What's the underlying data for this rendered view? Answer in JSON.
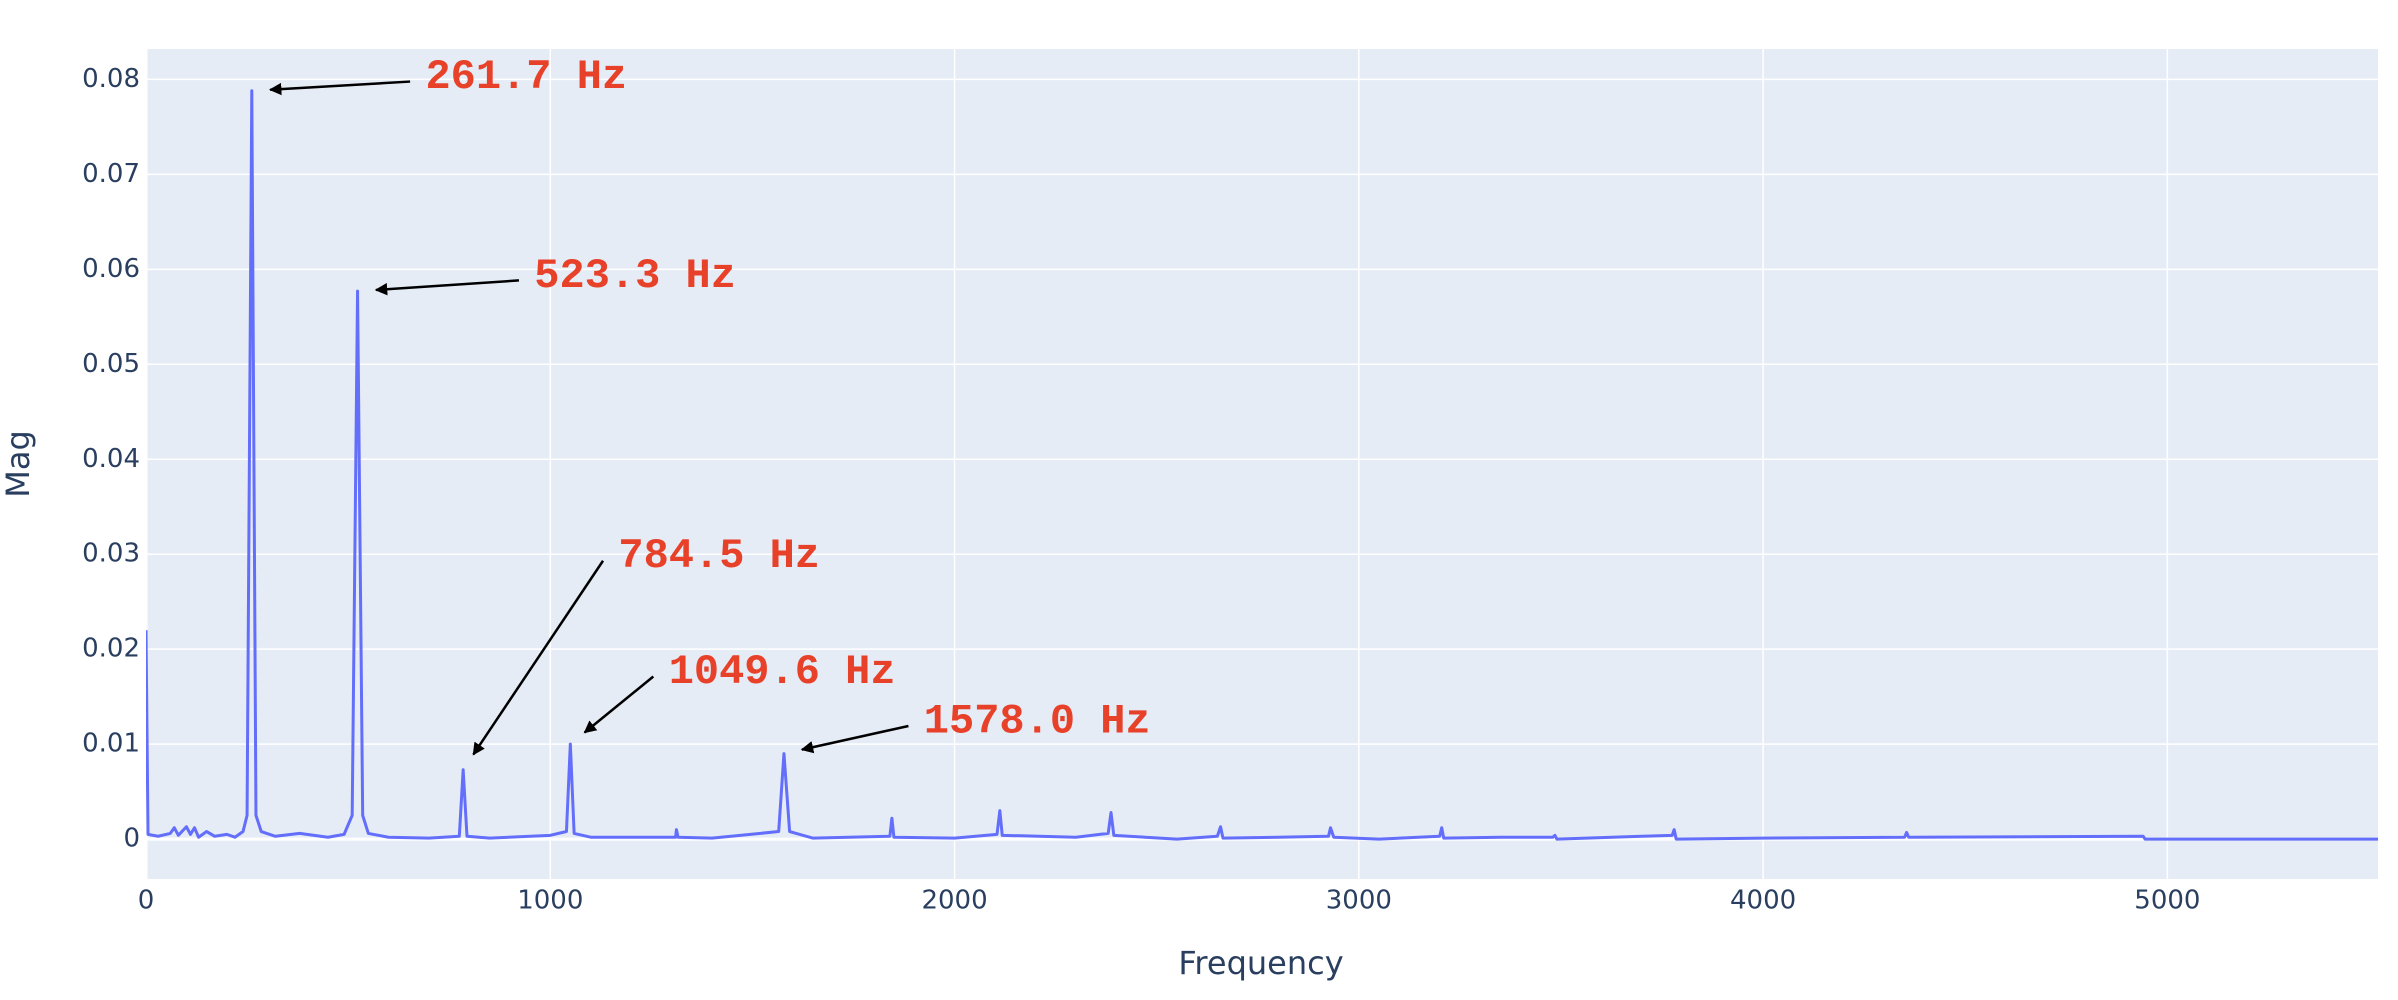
{
  "chart_data": {
    "type": "line",
    "x_label": "Frequency",
    "y_label": "Mag",
    "xlim": [
      0,
      5521
    ],
    "ylim": [
      -0.0042,
      0.0832
    ],
    "xticks": [
      0,
      1000,
      2000,
      3000,
      4000,
      5000
    ],
    "yticks": [
      0,
      0.01,
      0.02,
      0.03,
      0.04,
      0.05,
      0.06,
      0.07,
      0.08
    ],
    "grid": true,
    "series": [
      {
        "color": "#636efa",
        "x": [
          0,
          5,
          30,
          60,
          70,
          80,
          100,
          110,
          120,
          130,
          150,
          170,
          200,
          220,
          240,
          250,
          261.7,
          272,
          285,
          320,
          380,
          450,
          490,
          510,
          523.3,
          536,
          550,
          600,
          700,
          775,
          784.5,
          794,
          850,
          1000,
          1040,
          1049.6,
          1059,
          1100,
          1310,
          1312,
          1316,
          1400,
          1565,
          1578,
          1592,
          1650,
          1840,
          1845,
          1850,
          2000,
          2105,
          2112,
          2118,
          2300,
          2380,
          2387,
          2394,
          2550,
          2650,
          2658,
          2664,
          2800,
          2925,
          2930,
          2938,
          3050,
          3200,
          3205,
          3210,
          3350,
          3480,
          3485,
          3490,
          3700,
          3775,
          3780,
          3785,
          4000,
          4350,
          4355,
          4360,
          4940,
          4945,
          5521
        ],
        "values": [
          0.022,
          0.0005,
          0.0003,
          0.0006,
          0.0012,
          0.0004,
          0.0013,
          0.0005,
          0.0012,
          0.0002,
          0.0008,
          0.0003,
          0.0005,
          0.0002,
          0.0008,
          0.0025,
          0.0788,
          0.0025,
          0.0008,
          0.0003,
          0.0006,
          0.0002,
          0.0005,
          0.0025,
          0.0577,
          0.0025,
          0.0006,
          0.0002,
          0.0001,
          0.0003,
          0.0073,
          0.0003,
          0.0001,
          0.0004,
          0.0008,
          0.01,
          0.0006,
          0.0002,
          0.0002,
          0.001,
          0.0002,
          0.0001,
          0.0008,
          0.009,
          0.0008,
          0.0001,
          0.0003,
          0.0022,
          0.0002,
          0.0001,
          0.0005,
          0.003,
          0.0004,
          0.0002,
          0.0006,
          0.0028,
          0.0004,
          0,
          0.0003,
          0.0013,
          0.0001,
          0.0002,
          0.0003,
          0.0012,
          0.0002,
          0,
          0.0003,
          0.0012,
          0.0001,
          0.0002,
          0.0002,
          0.0004,
          0,
          0.0003,
          0.0004,
          0.001,
          0,
          0.0001,
          0.0002,
          0.0007,
          0.0002,
          0.0003,
          0,
          0
        ]
      }
    ],
    "annotations": [
      {
        "text": "261.7 Hz",
        "x": 261.7,
        "y": 0.0788
      },
      {
        "text": "523.3 Hz",
        "x": 523.3,
        "y": 0.0577
      },
      {
        "text": "784.5 Hz",
        "x": 784.5,
        "y": 0.0073
      },
      {
        "text": "1049.6 Hz",
        "x": 1049.6,
        "y": 0.01
      },
      {
        "text": "1578.0 Hz",
        "x": 1578.0,
        "y": 0.009
      }
    ]
  }
}
